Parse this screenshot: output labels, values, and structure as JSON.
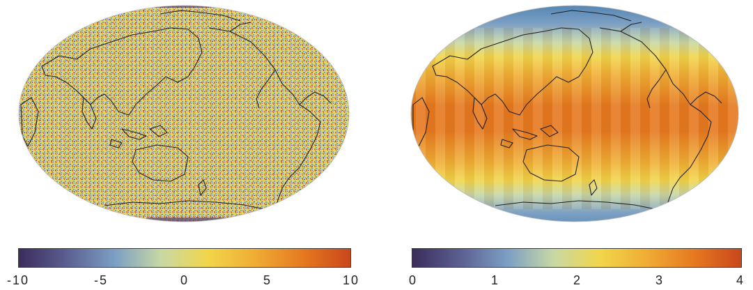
{
  "colormap": [
    "#3b2d5c",
    "#5a5d8f",
    "#7c9fc4",
    "#c8d8a4",
    "#f1d64a",
    "#f0ad35",
    "#e5781f",
    "#c9471b"
  ],
  "coastline_color": "#1f1f1f",
  "maps": [
    {
      "id": "left",
      "description": "noise field",
      "colorbar": {
        "min": -10,
        "max": 10,
        "ticks": [
          "-10",
          "-5",
          "0",
          "5",
          "10"
        ]
      }
    },
    {
      "id": "right",
      "description": "smooth field",
      "colorbar": {
        "min": 0,
        "max": 4,
        "ticks": [
          "0",
          "1",
          "2",
          "3",
          "4"
        ]
      }
    }
  ]
}
